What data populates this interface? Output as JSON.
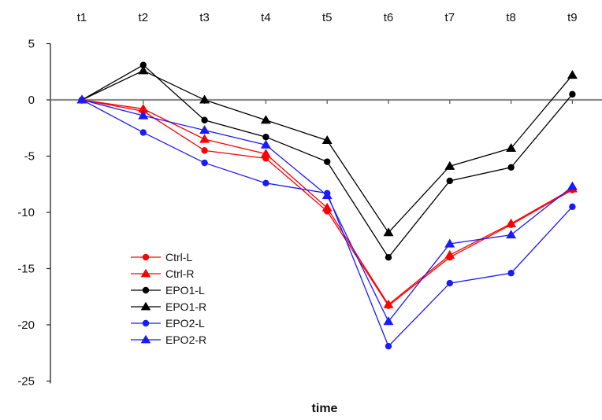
{
  "chart_data": {
    "type": "line",
    "title": "",
    "xlabel": "time",
    "ylabel": "",
    "categories": [
      "t1",
      "t2",
      "t3",
      "t4",
      "t5",
      "t6",
      "t7",
      "t8",
      "t9"
    ],
    "yticks": [
      "5",
      "0",
      "-5",
      "-10",
      "-15",
      "-20",
      "-25"
    ],
    "ylim": [
      -25,
      5
    ],
    "x_axis_position": "top",
    "zero_line": true,
    "grid": false,
    "legend_position": "lower-left",
    "series": [
      {
        "name": "Ctrl-L",
        "color": "#ff0000",
        "marker": "circle",
        "values": [
          0,
          -1.0,
          -4.5,
          -5.2,
          -9.9,
          -18.3,
          -14.0,
          -11.1,
          -8.0
        ]
      },
      {
        "name": "Ctrl-R",
        "color": "#ff0000",
        "marker": "triangle",
        "values": [
          0,
          -0.8,
          -3.5,
          -4.8,
          -9.6,
          -18.2,
          -13.8,
          -11.0,
          -7.9
        ]
      },
      {
        "name": "EPO1-L",
        "color": "#000000",
        "marker": "circle",
        "values": [
          0,
          3.1,
          -1.8,
          -3.3,
          -5.5,
          -14.0,
          -7.2,
          -6.0,
          0.5
        ]
      },
      {
        "name": "EPO1-R",
        "color": "#000000",
        "marker": "triangle",
        "values": [
          0,
          2.6,
          0.0,
          -1.8,
          -3.6,
          -11.8,
          -5.9,
          -4.3,
          2.2
        ]
      },
      {
        "name": "EPO2-L",
        "color": "#1a1aff",
        "marker": "circle",
        "values": [
          0,
          -2.9,
          -5.6,
          -7.4,
          -8.3,
          -21.9,
          -16.3,
          -15.4,
          -9.5
        ]
      },
      {
        "name": "EPO2-R",
        "color": "#1a1aff",
        "marker": "triangle",
        "values": [
          0,
          -1.4,
          -2.7,
          -4.0,
          -8.5,
          -19.7,
          -12.8,
          -12.0,
          -7.7
        ]
      }
    ]
  }
}
